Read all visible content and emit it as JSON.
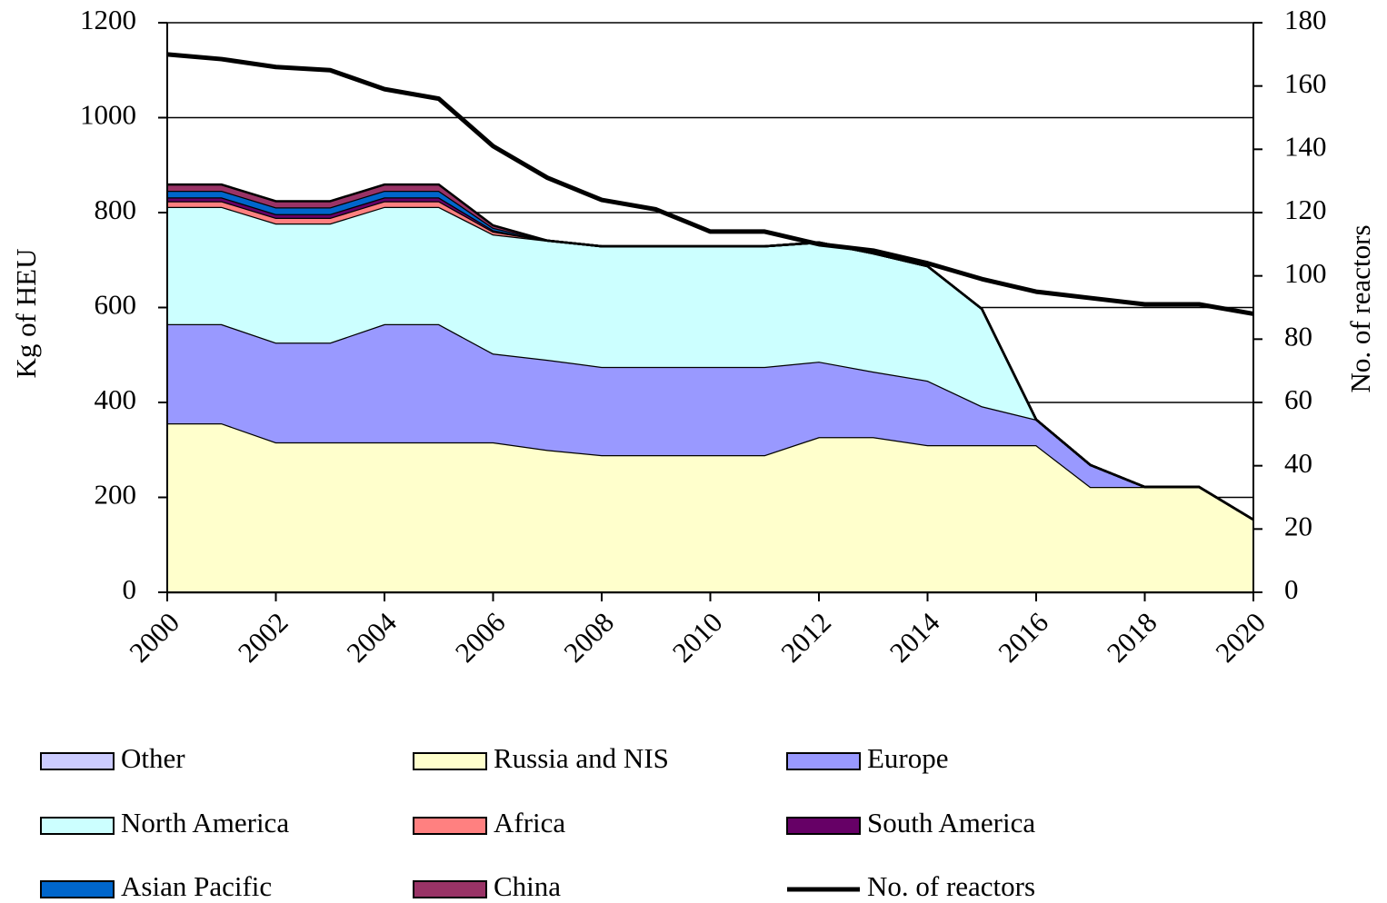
{
  "chart_data": {
    "type": "area",
    "x": [
      2000,
      2001,
      2002,
      2003,
      2004,
      2005,
      2006,
      2007,
      2008,
      2009,
      2010,
      2011,
      2012,
      2013,
      2014,
      2015,
      2016,
      2017,
      2018,
      2019,
      2020
    ],
    "xlim": [
      2000,
      2020
    ],
    "xticks": [
      2000,
      2002,
      2004,
      2006,
      2008,
      2010,
      2012,
      2014,
      2016,
      2018,
      2020
    ],
    "ylim": [
      0,
      1200
    ],
    "yticks": [
      0,
      200,
      400,
      600,
      800,
      1000,
      1200
    ],
    "y2lim": [
      0,
      180
    ],
    "y2ticks": [
      0,
      20,
      40,
      60,
      80,
      100,
      120,
      140,
      160,
      180
    ],
    "ylabel": "Kg of HEU",
    "y2label": "No. of reactors",
    "grid": true,
    "legend": "bottom",
    "series": [
      {
        "name": "Other",
        "color": "#ccccff",
        "values": [
          0,
          0,
          0,
          0,
          0,
          0,
          0,
          0,
          0,
          0,
          0,
          0,
          0,
          0,
          0,
          0,
          0,
          0,
          0,
          0,
          0
        ]
      },
      {
        "name": "Russia and NIS",
        "color": "#ffffcc",
        "values": [
          356,
          356,
          316,
          316,
          316,
          316,
          316,
          300,
          289,
          289,
          289,
          289,
          327,
          327,
          310,
          310,
          310,
          222,
          222,
          222,
          153
        ]
      },
      {
        "name": "Europe",
        "color": "#9999ff",
        "values": [
          209,
          209,
          210,
          210,
          249,
          249,
          187,
          190,
          186,
          186,
          186,
          186,
          159,
          138,
          136,
          82,
          54,
          46,
          0,
          0,
          0
        ]
      },
      {
        "name": "North America",
        "color": "#ccffff",
        "values": [
          247,
          247,
          251,
          251,
          247,
          247,
          251,
          251,
          254,
          254,
          254,
          254,
          251,
          249,
          241,
          205,
          0,
          0,
          0,
          0,
          0
        ]
      },
      {
        "name": "Africa",
        "color": "#ff8080",
        "values": [
          12,
          12,
          12,
          12,
          12,
          12,
          6,
          0,
          0,
          0,
          0,
          0,
          0,
          0,
          0,
          0,
          0,
          0,
          0,
          0,
          0
        ]
      },
      {
        "name": "South America",
        "color": "#660066",
        "values": [
          8,
          8,
          8,
          8,
          8,
          8,
          3,
          0,
          0,
          0,
          0,
          0,
          0,
          0,
          0,
          0,
          0,
          0,
          0,
          0,
          0
        ]
      },
      {
        "name": "Asian Pacific",
        "color": "#0066cc",
        "values": [
          14,
          14,
          14,
          14,
          14,
          14,
          5,
          0,
          0,
          0,
          0,
          0,
          0,
          0,
          0,
          0,
          0,
          0,
          0,
          0,
          0
        ]
      },
      {
        "name": "China",
        "color": "#993366",
        "values": [
          13,
          13,
          13,
          13,
          13,
          13,
          5,
          0,
          0,
          0,
          0,
          0,
          0,
          0,
          0,
          0,
          0,
          0,
          0,
          0,
          0
        ]
      },
      {
        "name": "No. of reactors",
        "color": "#000000",
        "type": "line",
        "axis": "y2",
        "values": [
          170,
          168.5,
          166,
          165,
          159,
          156,
          141,
          131,
          124,
          121,
          114,
          114,
          110,
          108,
          104,
          99,
          95,
          93,
          91,
          91,
          88
        ]
      }
    ]
  }
}
